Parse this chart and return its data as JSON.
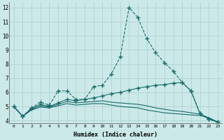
{
  "xlabel": "Humidex (Indice chaleur)",
  "xlim": [
    -0.5,
    23.5
  ],
  "ylim": [
    3.8,
    12.4
  ],
  "yticks": [
    4,
    5,
    6,
    7,
    8,
    9,
    10,
    11,
    12
  ],
  "xticks": [
    0,
    1,
    2,
    3,
    4,
    5,
    6,
    7,
    8,
    9,
    10,
    11,
    12,
    13,
    14,
    15,
    16,
    17,
    18,
    19,
    20,
    21,
    22,
    23
  ],
  "background_color": "#cce9e9",
  "line_color": "#1a6b6b",
  "grid_color": "#aacfcf",
  "series": [
    {
      "x": [
        0,
        1,
        2,
        3,
        4,
        5,
        6,
        7,
        8,
        9,
        10,
        11,
        12,
        13,
        14,
        15,
        16,
        17,
        18,
        19,
        20,
        21,
        22,
        23
      ],
      "y": [
        5.0,
        4.3,
        4.9,
        5.3,
        5.1,
        6.1,
        6.1,
        5.5,
        5.5,
        6.4,
        6.5,
        7.3,
        8.5,
        12.0,
        11.3,
        9.8,
        8.8,
        8.1,
        7.5,
        6.7,
        6.1,
        4.5,
        4.1,
        3.9
      ],
      "marker": "+",
      "linestyle": "--"
    },
    {
      "x": [
        0,
        1,
        2,
        3,
        4,
        5,
        6,
        7,
        8,
        9,
        10,
        11,
        12,
        13,
        14,
        15,
        16,
        17,
        18,
        19,
        20,
        21,
        22,
        23
      ],
      "y": [
        5.0,
        4.3,
        4.85,
        5.15,
        5.0,
        5.25,
        5.5,
        5.4,
        5.5,
        5.6,
        5.75,
        5.9,
        6.0,
        6.15,
        6.3,
        6.4,
        6.5,
        6.55,
        6.65,
        6.7,
        6.1,
        4.5,
        4.1,
        3.9
      ],
      "marker": "+",
      "linestyle": "-"
    },
    {
      "x": [
        0,
        1,
        2,
        3,
        4,
        5,
        6,
        7,
        8,
        9,
        10,
        11,
        12,
        13,
        14,
        15,
        16,
        17,
        18,
        19,
        20,
        21,
        22,
        23
      ],
      "y": [
        5.0,
        4.3,
        4.8,
        5.05,
        4.95,
        5.15,
        5.35,
        5.25,
        5.3,
        5.35,
        5.4,
        5.3,
        5.25,
        5.2,
        5.15,
        5.05,
        4.9,
        4.8,
        4.7,
        4.65,
        4.55,
        4.45,
        4.2,
        3.9
      ],
      "marker": null,
      "linestyle": "-"
    },
    {
      "x": [
        0,
        1,
        2,
        3,
        4,
        5,
        6,
        7,
        8,
        9,
        10,
        11,
        12,
        13,
        14,
        15,
        16,
        17,
        18,
        19,
        20,
        21,
        22,
        23
      ],
      "y": [
        5.0,
        4.3,
        4.75,
        4.95,
        4.9,
        5.05,
        5.2,
        5.1,
        5.15,
        5.2,
        5.2,
        5.1,
        5.0,
        4.95,
        4.9,
        4.75,
        4.65,
        4.55,
        4.5,
        4.45,
        4.4,
        4.35,
        4.2,
        3.9
      ],
      "marker": null,
      "linestyle": "-"
    }
  ]
}
